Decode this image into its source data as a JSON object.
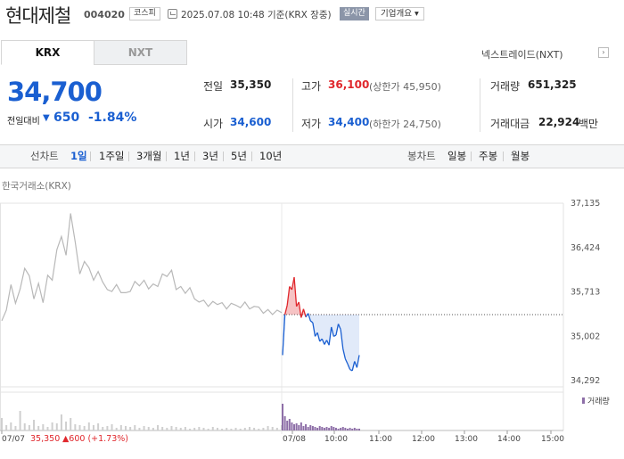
{
  "header": {
    "name": "현대제철",
    "code": "004020",
    "market": "코스피",
    "timestamp": "2025.07.08 10:48 기준(KRX 장중)",
    "realtime": "실시간",
    "company_btn": "기업개요 ▾"
  },
  "tabs": {
    "krx": "KRX",
    "nxt": "NXT"
  },
  "nextrade": {
    "label": "넥스트레이드(NXT)",
    "arrow": "›"
  },
  "price": {
    "current": "34,700",
    "diff_label": "전일대비",
    "diff_arrow": "▼",
    "diff_value": "650",
    "diff_pct": "-1.84%"
  },
  "stats": {
    "prev_label": "전일",
    "prev_value": "35,350",
    "high_label": "고가",
    "high_value": "36,100",
    "upper_limit": "(상한가 45,950)",
    "volume_label": "거래량",
    "volume_value": "651,325",
    "open_label": "시가",
    "open_value": "34,600",
    "low_label": "저가",
    "low_value": "34,400",
    "lower_limit": "(하한가 24,750)",
    "amount_label": "거래대금",
    "amount_value": "22,924",
    "amount_unit": "백만"
  },
  "toolbar": {
    "line_head": "선차트",
    "line_periods": [
      "1일",
      "1주일",
      "3개월",
      "1년",
      "3년",
      "5년",
      "10년"
    ],
    "active_period": "1일",
    "candle_head": "봉차트",
    "candle_periods": [
      "일봉",
      "주봉",
      "월봉"
    ]
  },
  "chart_caption": "한국거래소(KRX)",
  "chart_data": {
    "type": "line",
    "y_ticks": [
      "37,135",
      "36,424",
      "35,713",
      "35,002",
      "34,292"
    ],
    "y_tick_values": [
      37135,
      36424,
      35713,
      35002,
      34292
    ],
    "ylim": [
      34292,
      37135
    ],
    "x_labels": [
      "07/07",
      "07/08",
      "10:00",
      "11:00",
      "12:00",
      "13:00",
      "14:00",
      "15:00"
    ],
    "prev_day_label": "07/07",
    "prev_day_close": "35,350",
    "prev_day_change": "▲600 (+1.73%)",
    "reference_line": 35350,
    "volume_legend": "거래량",
    "series": [
      {
        "values": [
          35250,
          35420,
          35830,
          35530,
          35760,
          36090,
          35970,
          35600,
          35850,
          35540,
          35980,
          35900,
          36390,
          36600,
          36300,
          36970,
          36510,
          36000,
          36200,
          36100,
          35900,
          36040,
          35870,
          35750,
          35720,
          35830,
          35700,
          35700,
          35720,
          35880,
          35810,
          35900,
          35760,
          35840,
          35800,
          36000,
          35960,
          36060,
          35750,
          35800,
          35690,
          35780,
          35600,
          35550,
          35580,
          35480,
          35560,
          35510,
          35540,
          35440,
          35530,
          35500,
          35460,
          35550,
          35440,
          35480,
          35470,
          35370,
          35430,
          35350,
          35420,
          35380
        ]
      },
      {
        "values": [
          34700,
          35350,
          35500,
          35800,
          35750,
          35950,
          35480,
          35550,
          35300,
          35440,
          35310,
          35370,
          35250,
          35220,
          35000,
          35060,
          34920,
          34960,
          34870,
          34940,
          34860,
          35150,
          35000,
          35020,
          35200,
          35110,
          34800,
          34640,
          34560,
          34470,
          34450,
          34600,
          34500,
          34700
        ]
      }
    ],
    "volume_day1": [
      14,
      6,
      9,
      5,
      22,
      8,
      6,
      12,
      5,
      7,
      4,
      9,
      8,
      18,
      10,
      14,
      7,
      6,
      5,
      9,
      6,
      8,
      4,
      5,
      7,
      3,
      6,
      5,
      4,
      6,
      3,
      5,
      4,
      3,
      6,
      4,
      3,
      5,
      4,
      3,
      4,
      2,
      3,
      4,
      3,
      2,
      4,
      3,
      2,
      3,
      2,
      3,
      2,
      3,
      4,
      3,
      2,
      3,
      5,
      4,
      3,
      6
    ],
    "volume_day2": [
      30,
      16,
      11,
      13,
      9,
      7,
      8,
      6,
      9,
      5,
      7,
      4,
      6,
      5,
      4,
      3,
      5,
      4,
      3,
      4,
      3,
      5,
      4,
      3,
      2,
      3,
      4,
      3,
      2,
      3,
      2,
      3,
      2,
      2
    ]
  },
  "colors": {
    "up": "#e0272c",
    "down": "#1a5fd1",
    "prev_line": "#b8b8b8",
    "vol_day1": "#cfcfcf",
    "vol_day2": "#8e6fa8"
  }
}
